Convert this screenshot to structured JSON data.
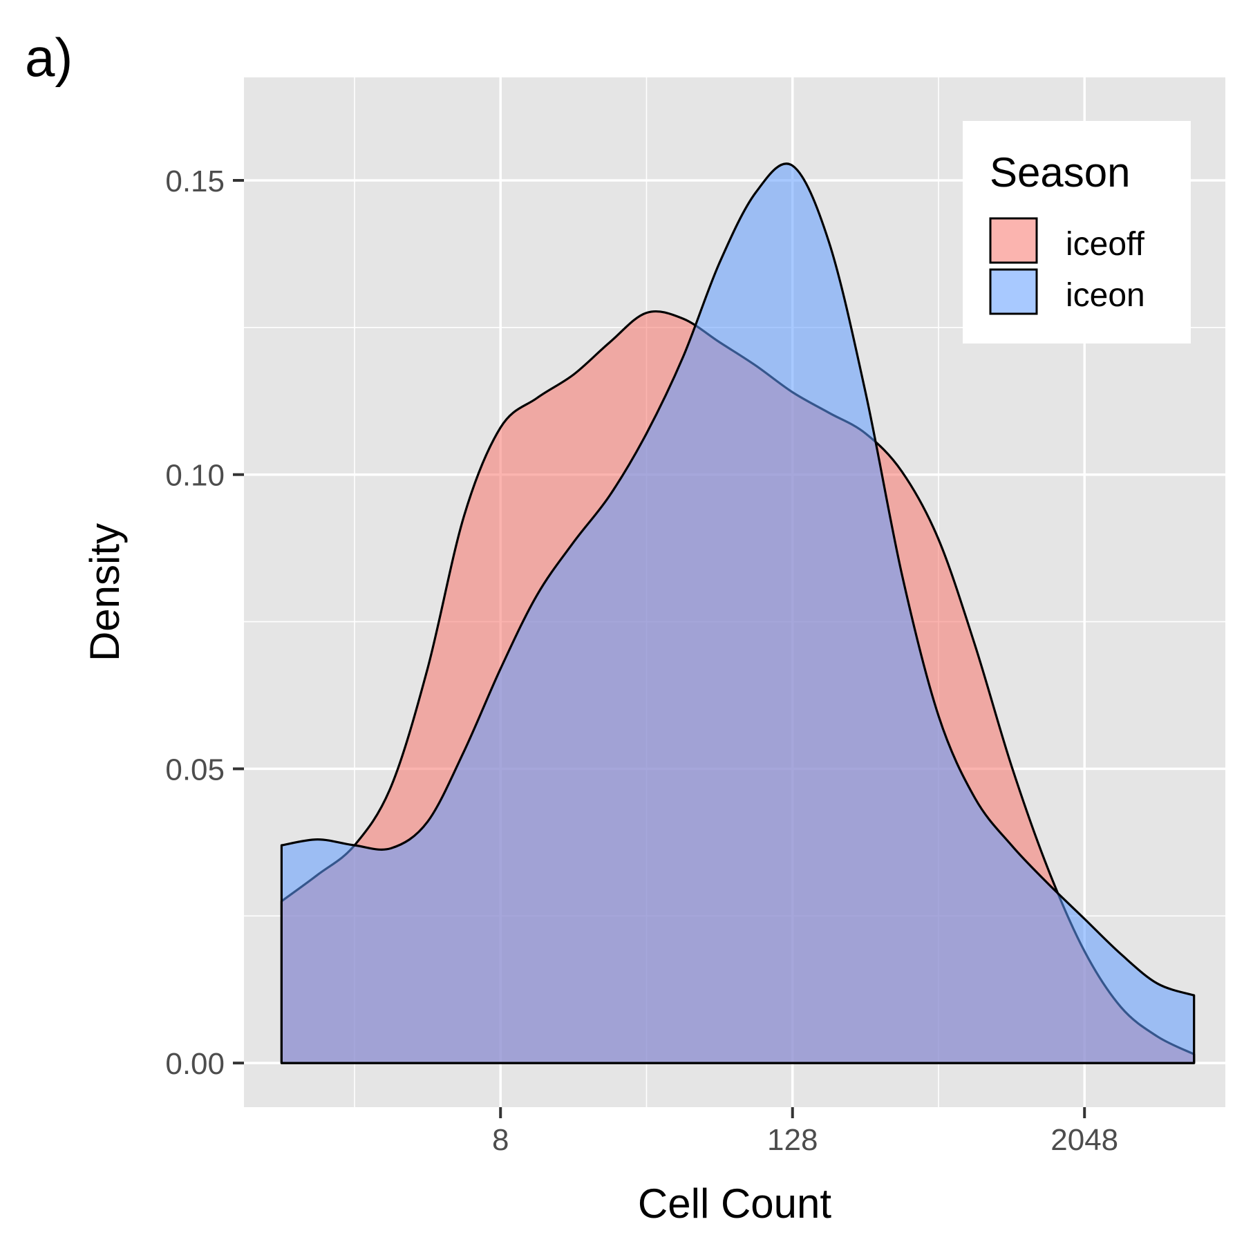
{
  "panel_label": "a)",
  "chart_data": {
    "type": "area",
    "subtype": "density",
    "xlabel": "Cell Count",
    "ylabel": "Density",
    "x_scale": "log2",
    "x_ticks": [
      8,
      128,
      2048
    ],
    "x_tick_labels": [
      "8",
      "128",
      "2048"
    ],
    "xlim": [
      0.7,
      7800
    ],
    "y_ticks": [
      0,
      0.05,
      0.1,
      0.15
    ],
    "y_tick_labels": [
      "0.00",
      "0.05",
      "0.10",
      "0.15"
    ],
    "ylim": [
      -0.0075,
      0.1675
    ],
    "grid": true,
    "legend": {
      "title": "Season",
      "position": "top-right",
      "entries": [
        "iceoff",
        "iceon"
      ]
    },
    "series": [
      {
        "name": "iceoff",
        "color": "#F8766D",
        "x": [
          1,
          1.41,
          2,
          2.83,
          4,
          5.66,
          8,
          11.3,
          16,
          22.6,
          32,
          45.3,
          64,
          90.5,
          128,
          181,
          256,
          362,
          512,
          724,
          1024,
          1448,
          2048,
          2896,
          4096,
          5793
        ],
        "y": [
          0.0275,
          0.032,
          0.037,
          0.047,
          0.067,
          0.093,
          0.108,
          0.113,
          0.117,
          0.1225,
          0.1275,
          0.1265,
          0.1225,
          0.1185,
          0.114,
          0.1105,
          0.107,
          0.1005,
          0.089,
          0.071,
          0.0505,
          0.033,
          0.019,
          0.0095,
          0.0045,
          0.0015
        ]
      },
      {
        "name": "iceon",
        "color": "#619CFF",
        "x": [
          1,
          1.41,
          2,
          2.83,
          4,
          5.66,
          8,
          11.3,
          16,
          22.6,
          32,
          45.3,
          64,
          90.5,
          128,
          181,
          256,
          362,
          512,
          724,
          1024,
          1448,
          2048,
          2896,
          4096,
          5793
        ],
        "y": [
          0.037,
          0.038,
          0.037,
          0.0365,
          0.041,
          0.053,
          0.067,
          0.0795,
          0.0885,
          0.0965,
          0.107,
          0.12,
          0.136,
          0.148,
          0.1525,
          0.1395,
          0.114,
          0.083,
          0.059,
          0.045,
          0.037,
          0.0305,
          0.0245,
          0.0185,
          0.0135,
          0.0115
        ]
      }
    ]
  }
}
